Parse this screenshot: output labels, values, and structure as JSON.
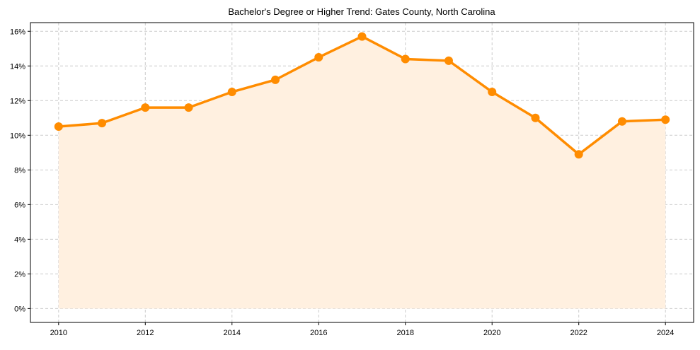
{
  "chart_data": {
    "type": "line",
    "title": "Bachelor's Degree or Higher Trend: Gates County, North Carolina",
    "xlabel": "",
    "ylabel": "",
    "x": [
      2010,
      2011,
      2012,
      2013,
      2014,
      2015,
      2016,
      2017,
      2018,
      2019,
      2020,
      2021,
      2022,
      2023,
      2024
    ],
    "series": [
      {
        "name": "Bachelor's Degree or Higher",
        "values": [
          10.5,
          10.7,
          11.6,
          11.6,
          12.5,
          13.2,
          14.5,
          15.7,
          14.4,
          14.3,
          12.5,
          11.0,
          8.9,
          10.8,
          10.9
        ]
      }
    ],
    "xticks": [
      2010,
      2012,
      2014,
      2016,
      2018,
      2020,
      2022,
      2024
    ],
    "yticks": [
      "0%",
      "2%",
      "4%",
      "6%",
      "8%",
      "10%",
      "12%",
      "14%",
      "16%"
    ],
    "ytick_values": [
      0,
      2,
      4,
      6,
      8,
      10,
      12,
      14,
      16
    ],
    "xlim": [
      2009.35,
      2024.65
    ],
    "ylim": [
      -0.8,
      16.5
    ],
    "grid": true,
    "colors": {
      "line": "#ff8c00",
      "fill": "#fff0e0",
      "grid": "#cccccc"
    }
  }
}
